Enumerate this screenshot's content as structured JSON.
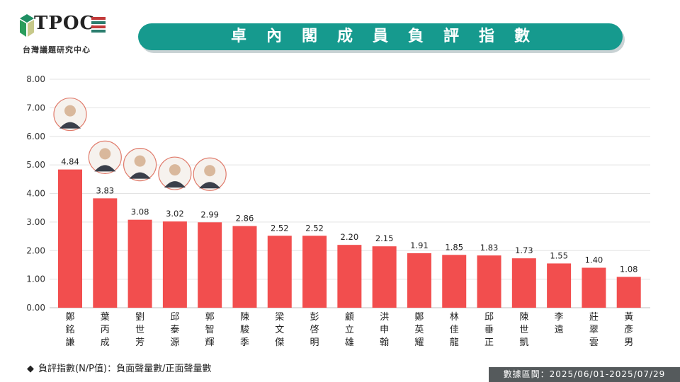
{
  "header": {
    "logo_text": "TPOC",
    "logo_subtitle": "台灣議題研究中心",
    "title": "卓內閣成員負評指數"
  },
  "chart_data": {
    "type": "bar",
    "title": "卓內閣成員負評指數",
    "xlabel": "",
    "ylabel": "",
    "ylim": [
      0,
      8
    ],
    "yticks": [
      "0.00",
      "1.00",
      "2.00",
      "3.00",
      "4.00",
      "5.00",
      "6.00",
      "7.00",
      "8.00"
    ],
    "grid": true,
    "bar_color": "#f24e4e",
    "categories": [
      "鄭銘謙",
      "葉丙成",
      "劉世芳",
      "邱泰源",
      "郭智輝",
      "陳駿季",
      "梁文傑",
      "彭啓明",
      "顧立雄",
      "洪申翰",
      "鄭英耀",
      "林佳龍",
      "邱垂正",
      "陳世凱",
      "李遠",
      "莊翠雲",
      "黃彥男"
    ],
    "values": [
      4.84,
      3.83,
      3.08,
      3.02,
      2.99,
      2.86,
      2.52,
      2.52,
      2.2,
      2.15,
      1.91,
      1.85,
      1.83,
      1.73,
      1.55,
      1.4,
      1.08
    ],
    "value_labels": [
      "4.84",
      "3.83",
      "3.08",
      "3.02",
      "2.99",
      "2.86",
      "2.52",
      "2.52",
      "2.20",
      "2.15",
      "1.91",
      "1.85",
      "1.83",
      "1.73",
      "1.55",
      "1.40",
      "1.08"
    ],
    "portraits_on_bars": [
      0,
      1,
      2,
      3,
      4
    ]
  },
  "footnote": "負評指數(N/P值)：負面聲量數/正面聲量數",
  "footnote_marker": "◆",
  "date_range": "數據區間：2025/06/01-2025/07/29"
}
